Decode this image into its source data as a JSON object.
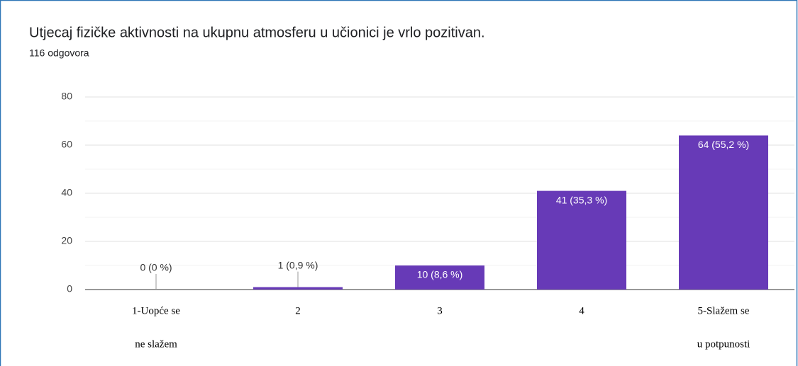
{
  "chart_data": {
    "type": "bar",
    "title": "Utjecaj fizičke aktivnosti na ukupnu atmosferu u učionici je vrlo pozitivan.",
    "subtitle": "116 odgovora",
    "categories": [
      [
        "1-Uopće se",
        "ne slažem"
      ],
      [
        "2"
      ],
      [
        "3"
      ],
      [
        "4"
      ],
      [
        "5-Slažem se",
        "u potpunosti"
      ]
    ],
    "values": [
      0,
      1,
      10,
      41,
      64
    ],
    "value_labels": [
      "0 (0 %)",
      "1 (0,9 %)",
      "10 (8,6 %)",
      "41 (35,3 %)",
      "64 (55,2 %)"
    ],
    "color": "#673ab7",
    "ylim": [
      0,
      80
    ],
    "yticks": [
      0,
      20,
      40,
      60,
      80
    ],
    "minor_yticks": [
      10,
      30,
      50,
      70
    ],
    "grid": true
  }
}
